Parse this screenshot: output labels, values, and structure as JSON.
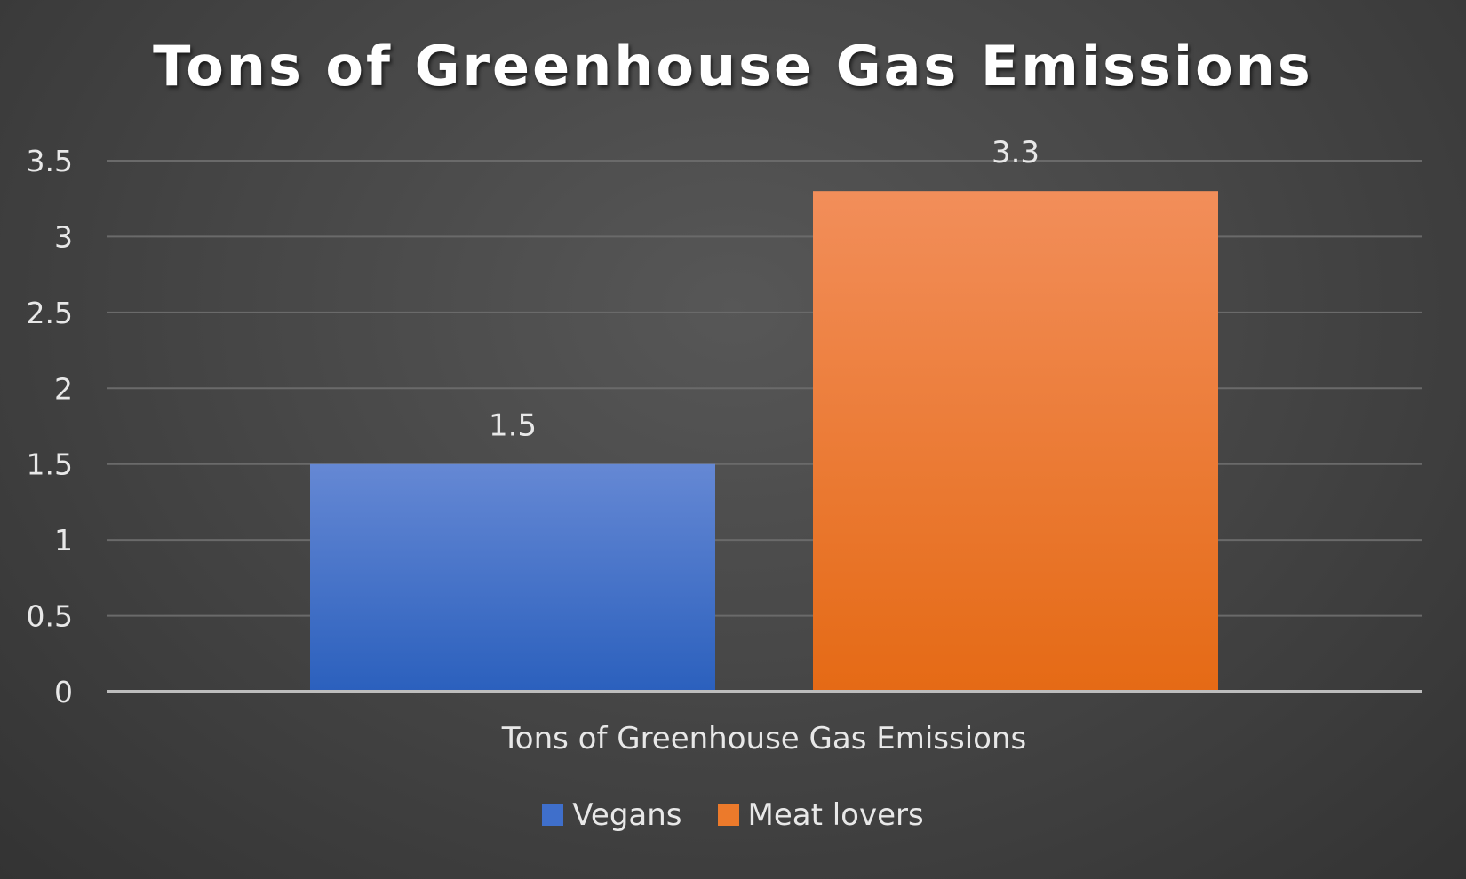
{
  "chart_data": {
    "type": "bar",
    "title": "Tons of Greenhouse Gas Emissions",
    "categories": [
      "Tons of Greenhouse Gas Emissions"
    ],
    "series": [
      {
        "name": "Vegans",
        "values": [
          1.5
        ],
        "color": "#4472C4"
      },
      {
        "name": "Meat lovers",
        "values": [
          3.3
        ],
        "color": "#ED7D31"
      }
    ],
    "yticks": [
      "0",
      "0.5",
      "1",
      "1.5",
      "2",
      "2.5",
      "3",
      "3.5"
    ],
    "ylim": [
      0,
      3.5
    ],
    "data_labels": [
      "1.5",
      "3.3"
    ],
    "grid": true,
    "legend_position": "bottom"
  }
}
